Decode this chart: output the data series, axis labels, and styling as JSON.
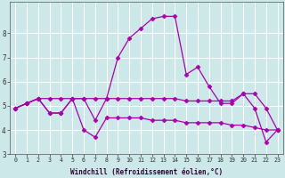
{
  "xlabel": "Windchill (Refroidissement éolien,°C)",
  "background_color": "#cce8e8",
  "grid_color": "#ffffff",
  "line_color": "#aa00aa",
  "hours": [
    0,
    1,
    2,
    3,
    4,
    5,
    6,
    7,
    8,
    9,
    10,
    11,
    12,
    13,
    14,
    15,
    16,
    17,
    18,
    19,
    20,
    21,
    22,
    23
  ],
  "line1": [
    4.9,
    5.1,
    5.3,
    5.3,
    5.3,
    5.3,
    5.3,
    5.3,
    5.3,
    5.3,
    5.3,
    5.3,
    5.3,
    5.3,
    5.3,
    5.2,
    5.2,
    5.2,
    5.2,
    5.2,
    5.5,
    5.5,
    4.9,
    4.0
  ],
  "line2": [
    4.9,
    5.1,
    5.3,
    4.7,
    4.7,
    5.3,
    4.0,
    3.7,
    4.5,
    4.5,
    4.5,
    4.5,
    4.4,
    4.4,
    4.4,
    4.3,
    4.3,
    4.3,
    4.3,
    4.2,
    4.2,
    4.1,
    4.0,
    4.0
  ],
  "line3": [
    4.9,
    5.1,
    5.3,
    4.7,
    4.7,
    5.3,
    5.3,
    4.4,
    5.3,
    7.0,
    7.8,
    8.2,
    8.6,
    8.7,
    8.7,
    6.3,
    6.6,
    5.8,
    5.1,
    5.1,
    5.5,
    4.9,
    3.5,
    4.0
  ],
  "ylim": [
    3.0,
    9.3
  ],
  "yticks": [
    3,
    4,
    5,
    6,
    7,
    8
  ],
  "xlim": [
    -0.5,
    23.5
  ],
  "marker": "D",
  "markersize": 2.5,
  "linewidth": 0.9
}
